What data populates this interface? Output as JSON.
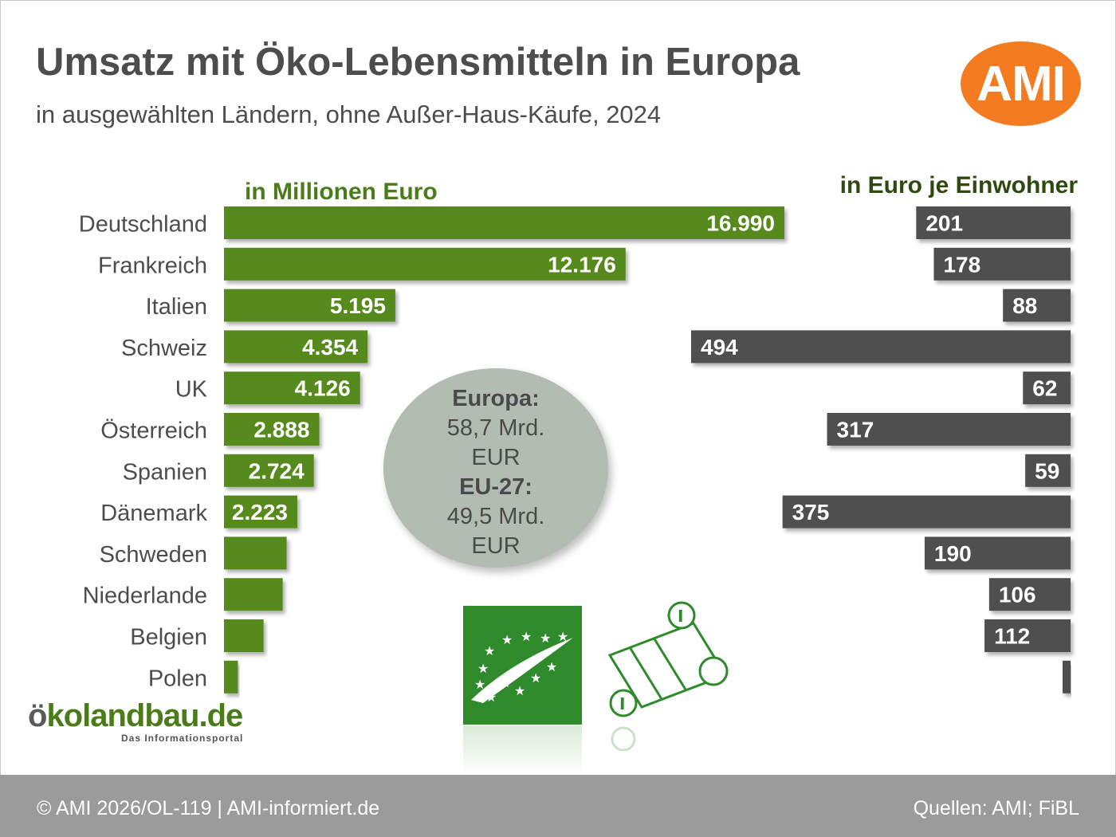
{
  "header": {
    "title": "Umsatz mit Öko-Lebensmitteln in Europa",
    "subtitle": "in ausgewählten Ländern, ohne Außer-Haus-Käufe, 2024",
    "logo_text": "AMI"
  },
  "colors": {
    "green": "#568a1f",
    "gray": "#4f4f4f",
    "orange": "#f47b20",
    "bubble": "#b3bcb2",
    "footer": "#9b9b9b"
  },
  "chart_data": {
    "type": "bar",
    "orientation": "horizontal",
    "categories": [
      "Deutschland",
      "Frankreich",
      "Italien",
      "Schweiz",
      "UK",
      "Österreich",
      "Spanien",
      "Dänemark",
      "Schweden",
      "Niederlande",
      "Belgien",
      "Polen"
    ],
    "series": [
      {
        "name": "in Millionen Euro",
        "values": [
          16990,
          12176,
          5195,
          4354,
          4126,
          2888,
          2724,
          2223,
          1900,
          1780,
          1200,
          420
        ],
        "labels": [
          "16.990",
          "12.176",
          "5.195",
          "4.354",
          "4.126",
          "2.888",
          "2.724",
          "2.223",
          "",
          "",
          "",
          ""
        ]
      },
      {
        "name": "in Euro je Einwohner",
        "values": [
          201,
          178,
          88,
          494,
          62,
          317,
          59,
          375,
          190,
          106,
          112,
          10
        ],
        "labels": [
          "201",
          "178",
          "88",
          "494",
          "62",
          "317",
          "59",
          "375",
          "190",
          "106",
          "112",
          ""
        ]
      }
    ]
  },
  "summary": {
    "europe_label": "Europa:",
    "europe_value": "58,7 Mrd.",
    "europe_unit": "EUR",
    "eu_label": "EU-27:",
    "eu_value": "49,5 Mrd.",
    "eu_unit": "EUR"
  },
  "oko_logo": {
    "prefix": "ö",
    "brand": "kolandbau.de",
    "tagline": "Das Informationsportal"
  },
  "footer": {
    "left": "© AMI 2026/OL-119 | AMI-informiert.de",
    "right": "Quellen: AMI; FiBL"
  }
}
